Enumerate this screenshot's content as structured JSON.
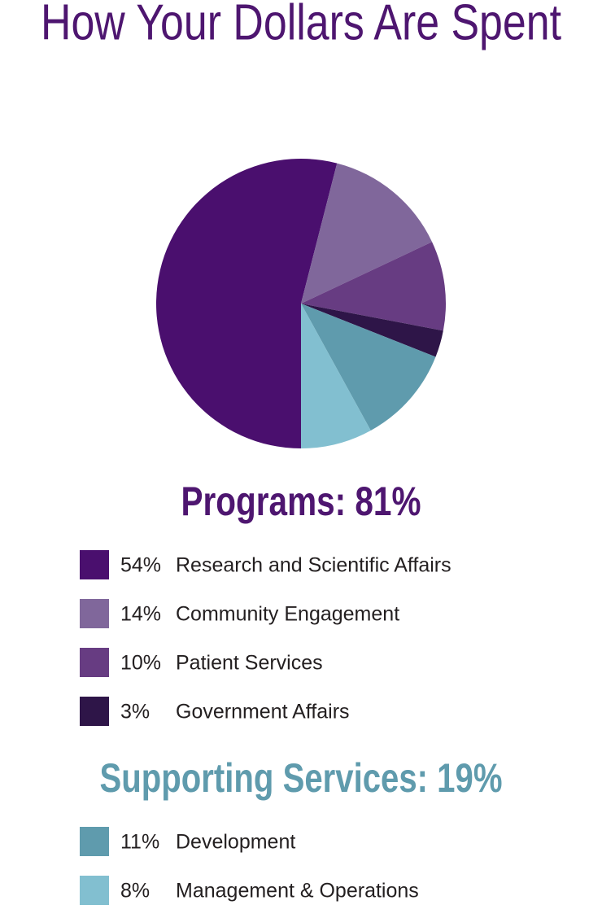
{
  "chart_data": {
    "type": "pie",
    "title": "How Your Dollars Are Spent",
    "title_color": "#4e1670",
    "groups": [
      {
        "title": "Programs: 81%",
        "color": "#4e1670",
        "categories": [
          "Research and Scientific Affairs",
          "Community Engagement",
          "Patient Services",
          "Government Affairs"
        ],
        "values": [
          54,
          14,
          10,
          3
        ],
        "value_labels": [
          "54%",
          "14%",
          "10%",
          "3%"
        ],
        "colors": [
          "#4a0f6e",
          "#80679b",
          "#673c82",
          "#2e1548"
        ]
      },
      {
        "title": "Supporting Services: 19%",
        "color": "#5f9bad",
        "categories": [
          "Development",
          "Management & Operations"
        ],
        "values": [
          11,
          8
        ],
        "value_labels": [
          "11%",
          "8%"
        ],
        "colors": [
          "#5f9bad",
          "#82bfd0"
        ]
      }
    ]
  }
}
